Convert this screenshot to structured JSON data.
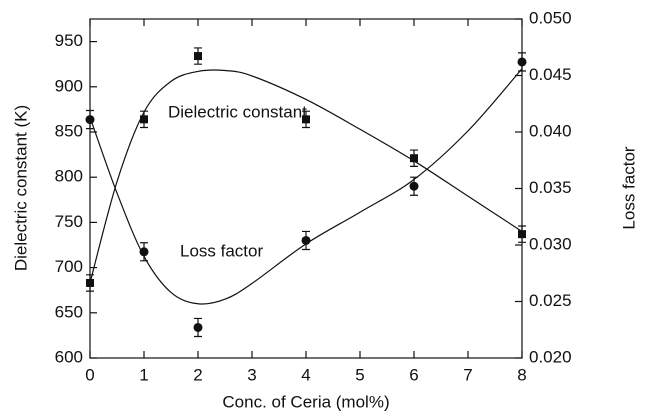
{
  "chart_data": {
    "type": "scatter",
    "x_label": "Conc. of Ceria (mol%)",
    "y_label": "Dielectric constant (K)",
    "y2_label": "Loss factor",
    "xlim": [
      0,
      8
    ],
    "xticks": [
      0,
      1,
      2,
      3,
      4,
      5,
      6,
      7,
      8
    ],
    "ylim": [
      600,
      975
    ],
    "yticks": [
      600,
      650,
      700,
      750,
      800,
      850,
      900,
      950
    ],
    "y2lim": [
      0.02,
      0.05
    ],
    "y2ticks": [
      {
        "value": 0.02,
        "label": "0.020"
      },
      0.025,
      {
        "value": 0.03,
        "label": "0.030"
      },
      0.035,
      {
        "value": 0.04,
        "label": "0.040"
      },
      0.045,
      {
        "value": 0.05,
        "label": "0.050"
      }
    ],
    "color": "#111111",
    "series": [
      {
        "name": "Dielectric constant",
        "marker": "square",
        "x": [
          0,
          1,
          2,
          4,
          6,
          8
        ],
        "values": [
          683,
          864,
          934,
          864,
          821,
          737
        ],
        "errors": [
          9,
          9,
          9,
          9,
          9,
          9
        ]
      },
      {
        "name": "Loss factor",
        "axis": "y2",
        "marker": "circle",
        "x": [
          0,
          1,
          2,
          4,
          6,
          8
        ],
        "values": [
          0.0411,
          0.0294,
          0.0227,
          0.0304,
          0.0352,
          0.0462
        ],
        "errors": [
          0.0008,
          0.0008,
          0.0008,
          0.0008,
          0.0008,
          0.0008
        ]
      }
    ],
    "fits": [
      {
        "x": [
          0,
          0.5,
          1,
          1.5,
          2,
          2.5,
          3,
          4,
          5,
          6,
          7,
          8
        ],
        "values": [
          683,
          795,
          872,
          906,
          917,
          918,
          912,
          886,
          853,
          818,
          779,
          740
        ]
      },
      {
        "axis": "y2",
        "x": [
          0,
          0.5,
          1,
          1.5,
          2,
          2.5,
          3,
          4,
          5,
          6,
          7,
          8
        ],
        "values": [
          0.0413,
          0.0346,
          0.029,
          0.0258,
          0.0248,
          0.0252,
          0.0266,
          0.0301,
          0.0329,
          0.0358,
          0.0401,
          0.0456
        ]
      }
    ]
  }
}
